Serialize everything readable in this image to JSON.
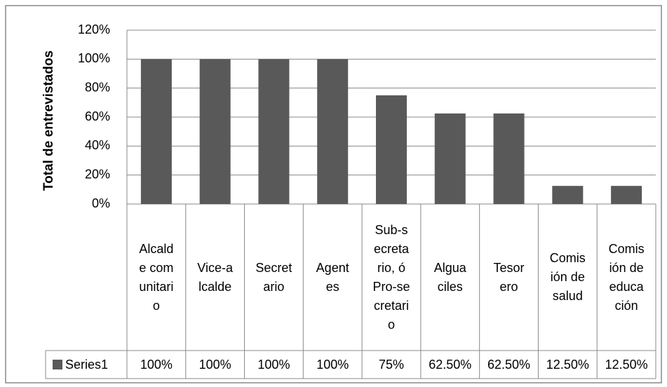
{
  "chart_data": {
    "type": "bar",
    "y_axis_label": "Total de entrevistados",
    "categories": [
      "Alcalde comunitario",
      "Vice-alcalde",
      "Secretario",
      "Agentes",
      "Sub-secretario, ó Pro-secretario",
      "Alguaciles",
      "Tesorero",
      "Comisión de salud",
      "Comisión de educación"
    ],
    "series": [
      {
        "name": "Series1",
        "color": "#595959",
        "values": [
          100,
          100,
          100,
          100,
          75,
          62.5,
          62.5,
          12.5,
          12.5
        ],
        "value_labels": [
          "100%",
          "100%",
          "100%",
          "100%",
          "75%",
          "62.50%",
          "62.50%",
          "12.50%",
          "12.50%"
        ]
      }
    ],
    "ylim": [
      0,
      120
    ],
    "yticks": [
      {
        "value": 0,
        "label": "0%"
      },
      {
        "value": 20,
        "label": "20%"
      },
      {
        "value": 40,
        "label": "40%"
      },
      {
        "value": 60,
        "label": "60%"
      },
      {
        "value": 80,
        "label": "80%"
      },
      {
        "value": 100,
        "label": "100%"
      },
      {
        "value": 120,
        "label": "120%"
      }
    ],
    "grid": true
  }
}
